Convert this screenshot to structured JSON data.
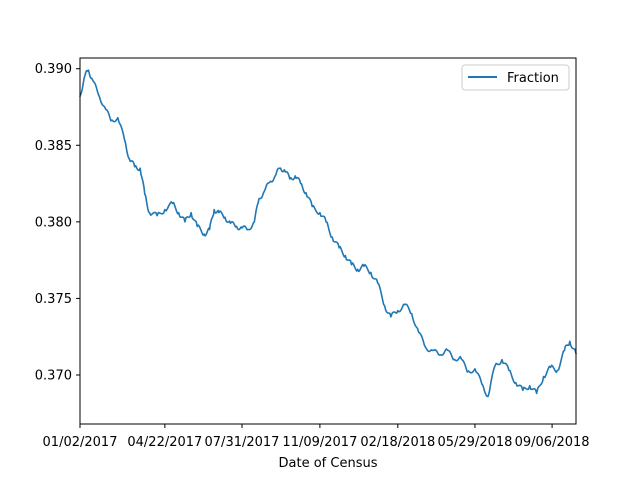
{
  "chart_data": {
    "type": "line",
    "title": "",
    "xlabel": "Date of Census",
    "ylabel": "",
    "x_start": "01/02/2017",
    "x_end": "10/07/2018",
    "xlim": [
      "01/02/2017",
      "10/07/2018"
    ],
    "ylim": [
      0.3668,
      0.3907
    ],
    "grid": false,
    "legend_position": "upper-right",
    "line_color": "#1f77b4",
    "x_ticks": [
      "01/02/2017",
      "04/22/2017",
      "07/31/2017",
      "11/09/2017",
      "02/18/2018",
      "05/29/2018",
      "09/06/2018"
    ],
    "y_ticks": [
      "0.370",
      "0.375",
      "0.380",
      "0.385",
      "0.390"
    ],
    "series": [
      {
        "name": "Fraction",
        "points": [
          [
            "01/02/2017",
            0.3882
          ],
          [
            "01/08/2017",
            0.3895
          ],
          [
            "01/13/2017",
            0.3899
          ],
          [
            "01/18/2017",
            0.3893
          ],
          [
            "01/26/2017",
            0.3883
          ],
          [
            "02/03/2017",
            0.3875
          ],
          [
            "02/11/2017",
            0.3866
          ],
          [
            "02/20/2017",
            0.3868
          ],
          [
            "03/01/2017",
            0.3853
          ],
          [
            "03/07/2017",
            0.3841
          ],
          [
            "03/14/2017",
            0.3836
          ],
          [
            "03/21/2017",
            0.3835
          ],
          [
            "03/27/2017",
            0.3818
          ],
          [
            "04/02/2017",
            0.3806
          ],
          [
            "04/12/2017",
            0.3804
          ],
          [
            "04/22/2017",
            0.3808
          ],
          [
            "05/02/2017",
            0.3812
          ],
          [
            "05/10/2017",
            0.3806
          ],
          [
            "05/18/2017",
            0.38
          ],
          [
            "05/26/2017",
            0.3806
          ],
          [
            "06/03/2017",
            0.3797
          ],
          [
            "06/12/2017",
            0.3792
          ],
          [
            "06/19/2017",
            0.3795
          ],
          [
            "06/25/2017",
            0.3808
          ],
          [
            "07/01/2017",
            0.3806
          ],
          [
            "07/09/2017",
            0.3803
          ],
          [
            "07/16/2017",
            0.3799
          ],
          [
            "07/24/2017",
            0.3797
          ],
          [
            "07/31/2017",
            0.3796
          ],
          [
            "08/08/2017",
            0.3795
          ],
          [
            "08/16/2017",
            0.38
          ],
          [
            "08/22/2017",
            0.3815
          ],
          [
            "08/29/2017",
            0.382
          ],
          [
            "09/05/2017",
            0.3826
          ],
          [
            "09/12/2017",
            0.383
          ],
          [
            "09/18/2017",
            0.3835
          ],
          [
            "09/24/2017",
            0.3834
          ],
          [
            "10/01/2017",
            0.3828
          ],
          [
            "10/08/2017",
            0.383
          ],
          [
            "10/15/2017",
            0.3825
          ],
          [
            "10/22/2017",
            0.3819
          ],
          [
            "10/30/2017",
            0.381
          ],
          [
            "11/09/2017",
            0.3806
          ],
          [
            "11/17/2017",
            0.38
          ],
          [
            "11/25/2017",
            0.379
          ],
          [
            "12/04/2017",
            0.3783
          ],
          [
            "12/12/2017",
            0.3778
          ],
          [
            "12/20/2017",
            0.3772
          ],
          [
            "12/28/2017",
            0.3769
          ],
          [
            "01/05/2018",
            0.3771
          ],
          [
            "01/14/2018",
            0.3767
          ],
          [
            "01/23/2018",
            0.376
          ],
          [
            "02/01/2018",
            0.3745
          ],
          [
            "02/09/2018",
            0.3738
          ],
          [
            "02/18/2018",
            0.3742
          ],
          [
            "02/27/2018",
            0.3746
          ],
          [
            "03/08/2018",
            0.374
          ],
          [
            "03/17/2018",
            0.3728
          ],
          [
            "03/26/2018",
            0.3718
          ],
          [
            "04/04/2018",
            0.3716
          ],
          [
            "04/13/2018",
            0.3713
          ],
          [
            "04/22/2018",
            0.3717
          ],
          [
            "05/01/2018",
            0.371
          ],
          [
            "05/10/2018",
            0.3712
          ],
          [
            "05/19/2018",
            0.3702
          ],
          [
            "05/29/2018",
            0.3704
          ],
          [
            "06/07/2018",
            0.3694
          ],
          [
            "06/15/2018",
            0.3686
          ],
          [
            "06/24/2018",
            0.3706
          ],
          [
            "07/03/2018",
            0.371
          ],
          [
            "07/12/2018",
            0.3703
          ],
          [
            "07/21/2018",
            0.3695
          ],
          [
            "07/30/2018",
            0.369
          ],
          [
            "08/08/2018",
            0.3693
          ],
          [
            "08/17/2018",
            0.3688
          ],
          [
            "08/26/2018",
            0.3699
          ],
          [
            "09/04/2018",
            0.3705
          ],
          [
            "09/13/2018",
            0.3703
          ],
          [
            "09/22/2018",
            0.3716
          ],
          [
            "09/29/2018",
            0.3722
          ],
          [
            "10/07/2018",
            0.3714
          ]
        ]
      }
    ]
  }
}
